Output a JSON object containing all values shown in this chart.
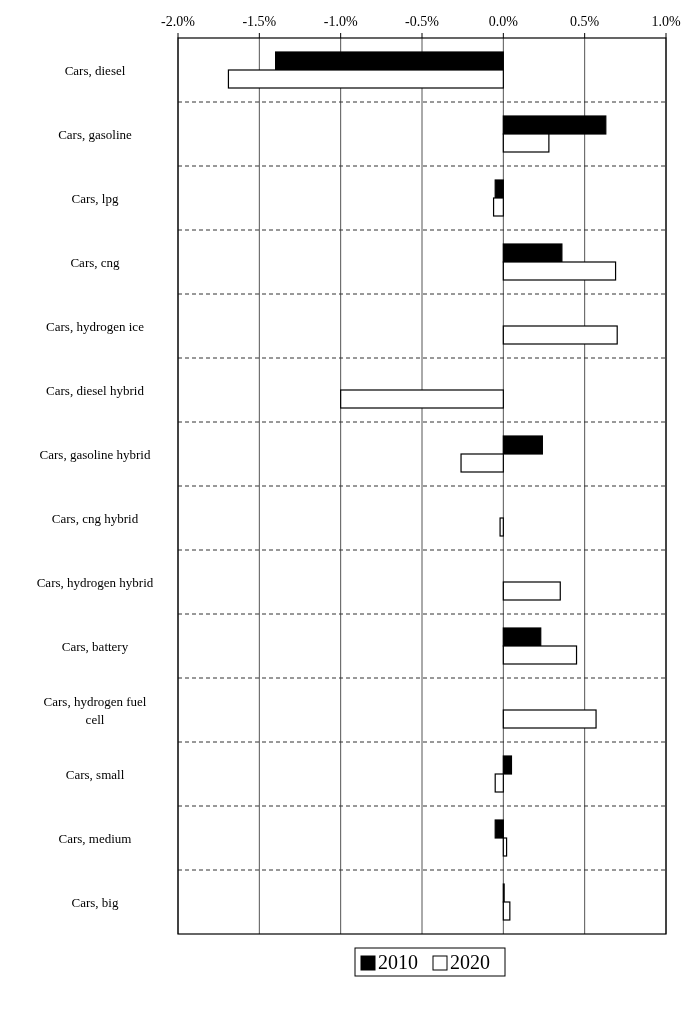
{
  "chart_data": {
    "type": "bar",
    "orientation": "horizontal",
    "categories": [
      "Cars, diesel",
      "Cars, gasoline",
      "Cars, lpg",
      "Cars, cng",
      "Cars, hydrogen ice",
      "Cars, diesel hybrid",
      "Cars, gasoline hybrid",
      "Cars, cng hybrid",
      "Cars, hydrogen hybrid",
      "Cars, battery",
      "Cars, hydrogen fuel cell",
      "Cars, small",
      "Cars, medium",
      "Cars, big"
    ],
    "series": [
      {
        "name": "2010",
        "color": "#000000",
        "values": [
          -1.4,
          0.63,
          -0.05,
          0.36,
          null,
          null,
          0.24,
          null,
          null,
          0.23,
          null,
          0.05,
          -0.05,
          0
        ]
      },
      {
        "name": "2020",
        "color": "#ffffff",
        "values": [
          -1.69,
          0.28,
          -0.06,
          0.69,
          0.7,
          -1.0,
          -0.26,
          -0.02,
          0.35,
          0.45,
          0.57,
          -0.05,
          0.02,
          0.04
        ]
      }
    ],
    "xlim": [
      -2,
      1
    ],
    "xticks": [
      {
        "value": -2,
        "label": "-2.0%"
      },
      {
        "value": -1.5,
        "label": "-1.5%"
      },
      {
        "value": -1,
        "label": "-1.0%"
      },
      {
        "value": -0.5,
        "label": "-0.5%"
      },
      {
        "value": 0,
        "label": "0.0%"
      },
      {
        "value": 0.5,
        "label": "0.5%"
      },
      {
        "value": 1,
        "label": "1.0%"
      }
    ],
    "grid": true,
    "legend": "bottom"
  }
}
